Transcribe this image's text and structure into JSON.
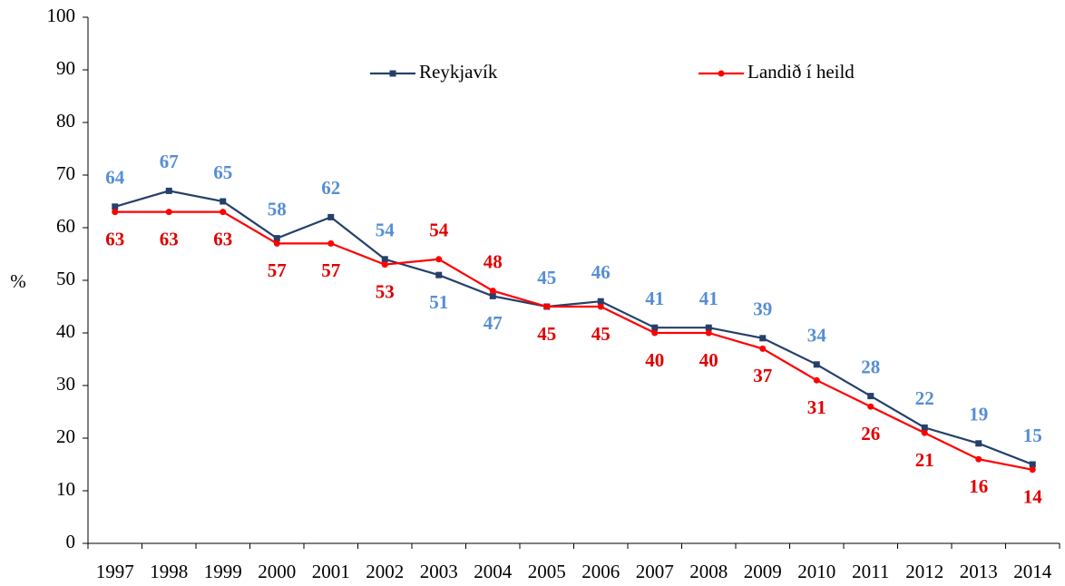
{
  "chart_data": {
    "type": "line",
    "y_label": "%",
    "categories": [
      "1997",
      "1998",
      "1999",
      "2000",
      "2001",
      "2002",
      "2003",
      "2004",
      "2005",
      "2006",
      "2007",
      "2008",
      "2009",
      "2010",
      "2011",
      "2012",
      "2013",
      "2014"
    ],
    "series": [
      {
        "name": "Reykjavík",
        "color": "#24406b",
        "label_color": "#558ed5",
        "marker": "square",
        "values": [
          64,
          67,
          65,
          58,
          62,
          54,
          51,
          47,
          45,
          46,
          41,
          41,
          39,
          34,
          28,
          22,
          19,
          15
        ]
      },
      {
        "name": "Landið í heild",
        "color": "#ff0000",
        "label_color": "#e00000",
        "marker": "circle",
        "values": [
          63,
          63,
          63,
          57,
          57,
          53,
          54,
          48,
          45,
          45,
          40,
          40,
          37,
          31,
          26,
          21,
          16,
          14
        ]
      }
    ],
    "ylim": [
      0,
      100
    ],
    "yticks": [
      0,
      10,
      20,
      30,
      40,
      50,
      60,
      70,
      80,
      90,
      100
    ],
    "grid": false,
    "legend": "top"
  }
}
